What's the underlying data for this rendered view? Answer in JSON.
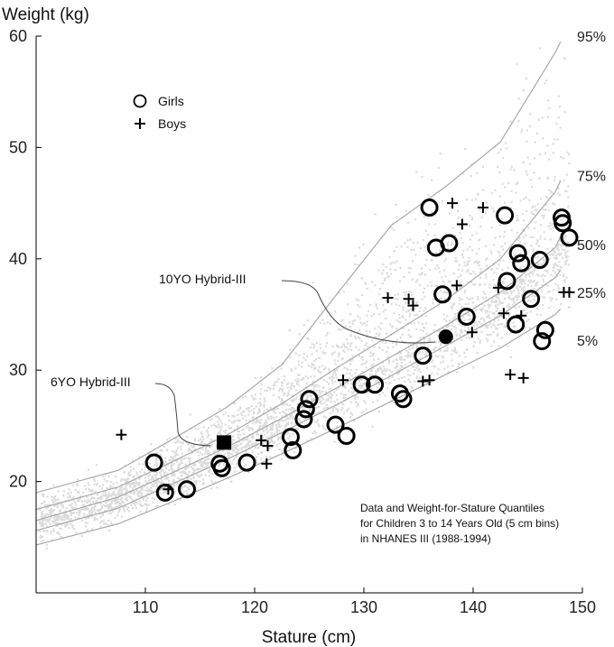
{
  "chart_data": {
    "type": "scatter",
    "xlabel": "Stature (cm)",
    "ylabel": "Weight (kg)",
    "xlim": [
      100,
      150
    ],
    "ylim": [
      10,
      60
    ],
    "x_ticks": [
      110,
      120,
      130,
      140,
      150
    ],
    "y_ticks": [
      20,
      30,
      40,
      50,
      60
    ],
    "grid": false,
    "legend_position": "top-left",
    "legend": [
      {
        "label": "Girls",
        "marker": "open-circle"
      },
      {
        "label": "Boys",
        "marker": "plus"
      }
    ],
    "note": [
      "Data and Weight-for-Stature Quantiles",
      "for Children 3 to 14 Years Old (5 cm bins)",
      "in NHANES III (1988-1994)"
    ],
    "colors": {
      "background_points": "#dcdcdc",
      "quantile_lines": "#a9a9a9",
      "markers": "#000000"
    },
    "background_cloud": "NHANES III individual data points (light gray), dense band between the 5% and 95% curves",
    "quantiles": [
      {
        "label": "95%",
        "x": [
          100,
          107.5,
          112.5,
          117.5,
          122.5,
          127.5,
          132.5,
          137.5,
          142.5,
          147.5,
          148
        ],
        "y": [
          19,
          21,
          23.8,
          26.7,
          30.5,
          36.8,
          43,
          46.5,
          50.5,
          58.5,
          59.5
        ]
      },
      {
        "label": "75%",
        "x": [
          100,
          107.5,
          112.5,
          117.5,
          122.5,
          127.5,
          132.5,
          137.5,
          142.5,
          147.5,
          148
        ],
        "y": [
          17.5,
          19.5,
          21.8,
          24.2,
          27,
          30.2,
          33.2,
          36.3,
          40,
          46,
          47
        ]
      },
      {
        "label": "50%",
        "x": [
          100,
          107.5,
          112.5,
          117.5,
          122.5,
          127.5,
          132.5,
          137.5,
          142.5,
          147.5,
          148
        ],
        "y": [
          16.5,
          18.6,
          20.8,
          23.1,
          25.7,
          28.4,
          31.2,
          34,
          37,
          41,
          42
        ]
      },
      {
        "label": "25%",
        "x": [
          100,
          107.5,
          112.5,
          117.5,
          122.5,
          127.5,
          132.5,
          137.5,
          142.5,
          147.5,
          148
        ],
        "y": [
          15.6,
          17.6,
          19.8,
          22,
          24.4,
          26.9,
          29.5,
          32.2,
          34.9,
          38.3,
          39
        ]
      },
      {
        "label": "5%",
        "x": [
          100,
          107.5,
          112.5,
          117.5,
          122.5,
          127.5,
          132.5,
          137.5,
          142.5,
          147.5,
          148
        ],
        "y": [
          14.3,
          16.2,
          18.2,
          20.3,
          22.5,
          24.8,
          27.2,
          29.6,
          32,
          35,
          35.5
        ]
      }
    ],
    "quantile_label_values": [
      {
        "label": "95%",
        "y": 60
      },
      {
        "label": "75%",
        "y": 47.5
      },
      {
        "label": "50%",
        "y": 41.3
      },
      {
        "label": "25%",
        "y": 37
      },
      {
        "label": "5%",
        "y": 32.7
      }
    ],
    "series": [
      {
        "name": "Girls",
        "marker": "open-circle",
        "points": [
          [
            110.8,
            21.7
          ],
          [
            111.8,
            19
          ],
          [
            113.8,
            19.3
          ],
          [
            116.8,
            21.6
          ],
          [
            117,
            21.2
          ],
          [
            119.3,
            21.7
          ],
          [
            123.3,
            24
          ],
          [
            123.5,
            22.8
          ],
          [
            124.5,
            25.6
          ],
          [
            124.7,
            26.5
          ],
          [
            125,
            27.4
          ],
          [
            127.4,
            25.1
          ],
          [
            128.4,
            24.1
          ],
          [
            129.8,
            28.7
          ],
          [
            131,
            28.7
          ],
          [
            133.3,
            27.9
          ],
          [
            133.6,
            27.4
          ],
          [
            135.4,
            31.3
          ],
          [
            136,
            44.6
          ],
          [
            136.6,
            41
          ],
          [
            137.2,
            36.8
          ],
          [
            137.8,
            41.4
          ],
          [
            139.4,
            34.8
          ],
          [
            142.9,
            43.9
          ],
          [
            143.1,
            38
          ],
          [
            143.9,
            34.1
          ],
          [
            144.1,
            40.5
          ],
          [
            144.4,
            39.6
          ],
          [
            145.3,
            36.4
          ],
          [
            146.1,
            39.9
          ],
          [
            146.3,
            32.6
          ],
          [
            146.6,
            33.6
          ],
          [
            148.1,
            43.7
          ],
          [
            148.2,
            43.2
          ],
          [
            148.8,
            41.9
          ]
        ]
      },
      {
        "name": "Boys",
        "marker": "plus",
        "points": [
          [
            107.8,
            24.2
          ],
          [
            112.1,
            19.3
          ],
          [
            120.6,
            23.7
          ],
          [
            121.1,
            21.6
          ],
          [
            121.2,
            23.2
          ],
          [
            128.1,
            29.1
          ],
          [
            132.2,
            36.5
          ],
          [
            134.1,
            36.4
          ],
          [
            134.5,
            35.8
          ],
          [
            135.4,
            29
          ],
          [
            136,
            29.1
          ],
          [
            138.1,
            45
          ],
          [
            138.5,
            37.6
          ],
          [
            139,
            43.1
          ],
          [
            139.9,
            33.4
          ],
          [
            140.9,
            44.6
          ],
          [
            142.3,
            37.4
          ],
          [
            142.8,
            35.1
          ],
          [
            143.4,
            29.6
          ],
          [
            144.4,
            34.9
          ],
          [
            144.6,
            29.3
          ],
          [
            148.3,
            37
          ],
          [
            148.8,
            37
          ]
        ]
      }
    ],
    "reference_markers": [
      {
        "label": "6YO Hybrid-III",
        "marker": "filled-square",
        "x": 117.2,
        "y": 23.5
      },
      {
        "label": "10YO Hybrid-III",
        "marker": "filled-circle",
        "x": 137.5,
        "y": 33
      }
    ]
  }
}
